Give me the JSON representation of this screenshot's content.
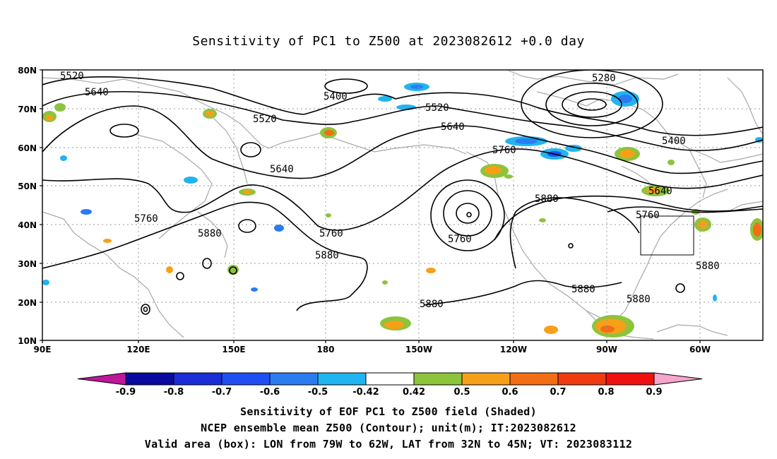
{
  "title": "Sensitivity of PC1 to Z500 at 2023082612 +0.0 day",
  "lat_labels": [
    "80N",
    "70N",
    "60N",
    "50N",
    "40N",
    "30N",
    "20N",
    "10N"
  ],
  "lon_labels": [
    "90E",
    "120E",
    "150E",
    "180",
    "150W",
    "120W",
    "90W",
    "60W"
  ],
  "contour_labels": [
    "5280",
    "5400",
    "5520",
    "5640",
    "5760",
    "5880"
  ],
  "colorbar": {
    "tick_labels": [
      "-0.9",
      "-0.8",
      "-0.7",
      "-0.6",
      "-0.5",
      "-0.42",
      "0.42",
      "0.5",
      "0.6",
      "0.7",
      "0.8",
      "0.9"
    ],
    "colors": [
      "#c0169a",
      "#0a0a9e",
      "#1a2dd6",
      "#1f4ff2",
      "#2a7cf0",
      "#20b4f0",
      "#ffffff",
      "#8cc43c",
      "#f6a01a",
      "#f36d14",
      "#f03a10",
      "#f01010",
      "#f4a6cc"
    ]
  },
  "valid_box": {
    "lon_from": "79W",
    "lon_to": "62W",
    "lat_from": "32N",
    "lat_to": "45N"
  },
  "footer": {
    "line1": "Sensitivity of EOF PC1 to Z500 field (Shaded)",
    "line2": "NCEP ensemble mean Z500 (Contour); unit(m); IT:2023082612",
    "line3": "Valid area (box): LON from 79W to 62W, LAT from 32N to 45N; VT: 2023083112"
  }
}
